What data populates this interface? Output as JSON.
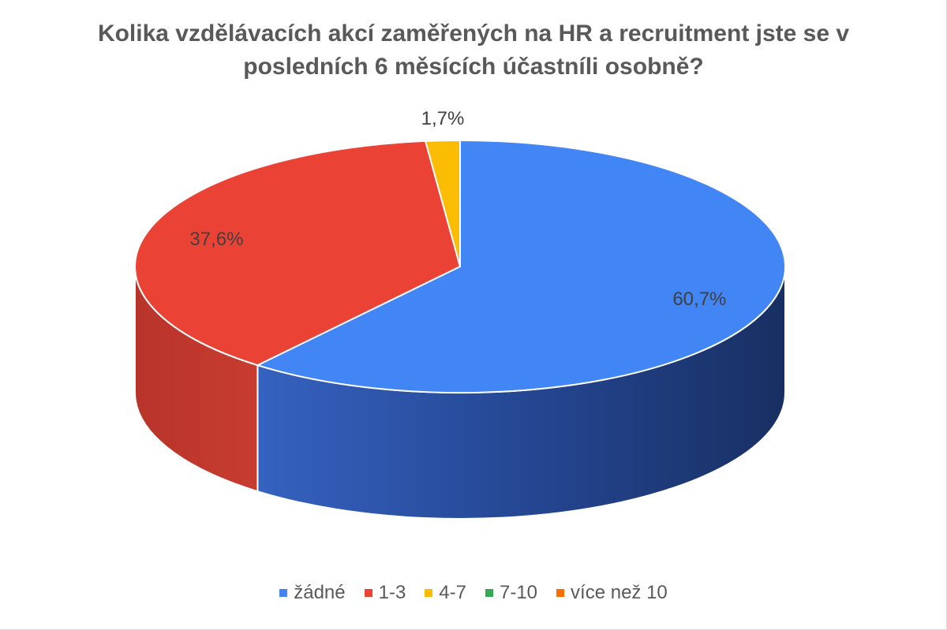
{
  "chart_data": {
    "type": "pie",
    "title_lines": [
      "Kolika vzdělávacích akcí zaměřených na HR a recruitment jste se v",
      "posledních 6 měsících účastníli osobně?"
    ],
    "categories": [
      "žádné",
      "1-3",
      "4-7",
      "7-10",
      "více než 10"
    ],
    "values": [
      60.7,
      37.6,
      1.7,
      0,
      0
    ],
    "labels": [
      "60,7%",
      "37,6%",
      "1,7%",
      "",
      ""
    ],
    "colors": [
      "#4285f4",
      "#ea4335",
      "#fbbc04",
      "#34a853",
      "#ff6d01"
    ],
    "side_colors": [
      "#1e3a78",
      "#c0392b",
      "#d4a000",
      "#2a8a44",
      "#d95a00"
    ],
    "start_angle_deg": 0,
    "direction": "clockwise",
    "three_d": true,
    "legend_position": "bottom"
  }
}
